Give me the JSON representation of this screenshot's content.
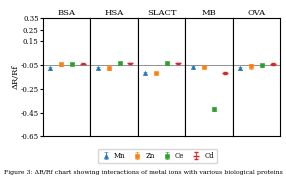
{
  "chart_data": [
    {
      "type": "scatter",
      "title": "BSA",
      "ylabel": "ΔR/Rf",
      "ylim": [
        -0.65,
        0.35
      ],
      "yticks": [
        0.35,
        0.25,
        0.15,
        -0.05,
        -0.25,
        -0.45,
        -0.65
      ],
      "tick_labels": "y",
      "reference_line": -0.045,
      "legend": "lower center",
      "series": [
        {
          "name": "Mn",
          "marker": "triangle",
          "values": [
            -0.075
          ],
          "yerr": [
            0.012
          ]
        },
        {
          "name": "Zn",
          "marker": "square",
          "values": [
            -0.042
          ],
          "yerr": [
            0.013
          ]
        },
        {
          "name": "Ce",
          "marker": "square",
          "values": [
            -0.038
          ],
          "yerr": [
            0.007
          ]
        },
        {
          "name": "Cd",
          "marker": "dash",
          "values": [
            -0.038
          ],
          "yerr": [
            0.004
          ]
        }
      ]
    },
    {
      "type": "scatter",
      "title": "HSA",
      "ylim": [
        -0.65,
        0.35
      ],
      "tick_labels": false,
      "reference_line": -0.045,
      "series": [
        {
          "name": "Mn",
          "marker": "triangle",
          "values": [
            -0.072
          ],
          "yerr": [
            0.01
          ]
        },
        {
          "name": "Zn",
          "marker": "square",
          "values": [
            -0.072
          ],
          "yerr": [
            0.022
          ]
        },
        {
          "name": "Ce",
          "marker": "square",
          "values": [
            -0.033
          ],
          "yerr": [
            0.007
          ]
        },
        {
          "name": "Cd",
          "marker": "dash",
          "values": [
            -0.033
          ],
          "yerr": [
            0.004
          ]
        }
      ]
    },
    {
      "type": "scatter",
      "title": "SLACT",
      "ylim": [
        -0.65,
        0.35
      ],
      "tick_labels": false,
      "reference_line": -0.045,
      "series": [
        {
          "name": "Mn",
          "marker": "triangle",
          "values": [
            -0.115
          ],
          "yerr": [
            0.011
          ]
        },
        {
          "name": "Zn",
          "marker": "square",
          "values": [
            -0.115
          ],
          "yerr": [
            0.009
          ]
        },
        {
          "name": "Ce",
          "marker": "square",
          "values": [
            -0.033
          ],
          "yerr": [
            0.007
          ]
        },
        {
          "name": "Cd",
          "marker": "dash",
          "values": [
            -0.033
          ],
          "yerr": [
            0.004
          ]
        }
      ]
    },
    {
      "type": "scatter",
      "title": "MB",
      "ylim": [
        -0.65,
        0.35
      ],
      "tick_labels": false,
      "reference_line": -0.045,
      "series": [
        {
          "name": "Mn",
          "marker": "triangle",
          "values": [
            -0.068
          ],
          "yerr": [
            0.009
          ]
        },
        {
          "name": "Zn",
          "marker": "square",
          "values": [
            -0.068
          ],
          "yerr": [
            0.007
          ]
        },
        {
          "name": "Ce",
          "marker": "square",
          "values": [
            -0.42
          ],
          "yerr": [
            0.016
          ]
        },
        {
          "name": "Cd",
          "marker": "dash",
          "values": [
            -0.115
          ],
          "yerr": [
            0.007
          ]
        }
      ]
    },
    {
      "type": "scatter",
      "title": "OVA",
      "ylim": [
        -0.65,
        0.35
      ],
      "tick_labels": false,
      "reference_line": -0.045,
      "series": [
        {
          "name": "Mn",
          "marker": "triangle",
          "values": [
            -0.078
          ],
          "yerr": [
            0.009
          ]
        },
        {
          "name": "Zn",
          "marker": "square",
          "values": [
            -0.06
          ],
          "yerr": [
            0.019
          ]
        },
        {
          "name": "Ce",
          "marker": "square",
          "values": [
            -0.052
          ],
          "yerr": [
            0.011
          ]
        },
        {
          "name": "Cd",
          "marker": "dash",
          "values": [
            -0.042
          ],
          "yerr": [
            0.007
          ]
        }
      ]
    }
  ],
  "caption": "Figure 3: ΔR/Rf chart showing interactions of metal ions with various biological proteins"
}
